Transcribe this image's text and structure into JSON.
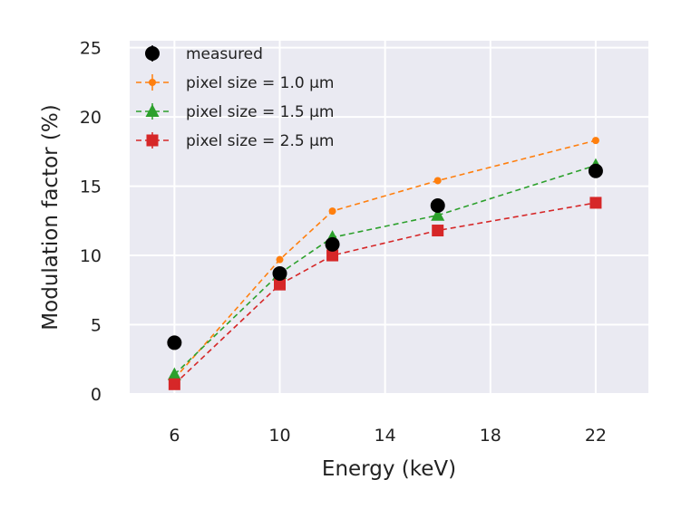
{
  "chart_data": {
    "type": "line",
    "title": "",
    "xlabel": "Energy (keV)",
    "ylabel": "Modulation factor (%)",
    "xlim": [
      4.3,
      24.0
    ],
    "ylim": [
      0,
      25.5
    ],
    "xticks": [
      6,
      10,
      14,
      18,
      22
    ],
    "yticks": [
      0,
      5,
      10,
      15,
      20,
      25
    ],
    "grid": true,
    "legend_position": "top-left",
    "series": [
      {
        "name": "measured",
        "x": [
          6,
          10,
          12,
          16,
          22
        ],
        "y": [
          3.7,
          8.7,
          10.8,
          13.6,
          16.1
        ],
        "yerr": [
          0.2,
          0.3,
          0.3,
          0.4,
          0.5
        ],
        "color": "#000000",
        "marker": "circle",
        "line": "none"
      },
      {
        "name": "pixel size = 1.0 µm",
        "x": [
          6,
          10,
          12,
          16,
          22
        ],
        "y": [
          1.1,
          9.7,
          13.2,
          15.4,
          18.3
        ],
        "color": "#ff7f0e",
        "marker": "circle-small",
        "line": "dashed"
      },
      {
        "name": "pixel size = 1.5 µm",
        "x": [
          6,
          10,
          12,
          16,
          22
        ],
        "y": [
          1.4,
          8.7,
          11.3,
          12.9,
          16.5
        ],
        "color": "#2ca02c",
        "marker": "triangle",
        "line": "dashed"
      },
      {
        "name": "pixel size = 2.5 µm",
        "x": [
          6,
          10,
          12,
          16,
          22
        ],
        "y": [
          0.7,
          7.9,
          10.0,
          11.8,
          13.8
        ],
        "color": "#d62728",
        "marker": "square",
        "line": "dashed"
      }
    ]
  },
  "colors": {
    "plot_background": "#eaeaf2",
    "grid": "#ffffff",
    "text": "#222222"
  }
}
